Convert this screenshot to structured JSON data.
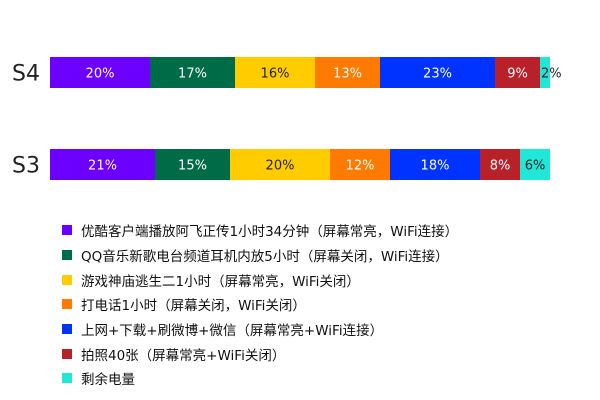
{
  "chart_data": {
    "type": "bar",
    "orientation": "horizontal",
    "stacked": true,
    "categories": [
      "S4",
      "S3"
    ],
    "series": [
      {
        "name": "优酷客户端播放阿飞正传1小时34分钟（屏幕常亮，WiFi连接）",
        "color": "#6b00ff",
        "values": [
          20,
          21
        ],
        "labels": [
          "20%",
          "21%"
        ]
      },
      {
        "name": "QQ音乐新歌电台频道耳机内放5小时（屏幕关闭，WiFi连接）",
        "color": "#006c47",
        "values": [
          17,
          15
        ],
        "labels": [
          "17%",
          "15%"
        ]
      },
      {
        "name": "游戏神庙逃生二1小时（屏幕常亮，WiFi关闭）",
        "color": "#ffcc00",
        "values": [
          16,
          20
        ],
        "labels": [
          "16%",
          "20%"
        ]
      },
      {
        "name": "打电话1小时（屏幕关闭，WiFi关闭）",
        "color": "#ff7a00",
        "values": [
          13,
          12
        ],
        "labels": [
          "13%",
          "12%"
        ]
      },
      {
        "name": "上网+下载+刷微博+微信（屏幕常亮+WiFi连接）",
        "color": "#0033ff",
        "values": [
          23,
          18
        ],
        "labels": [
          "23%",
          "18%"
        ]
      },
      {
        "name": "拍照40张（屏幕常亮+WiFi关闭）",
        "color": "#b8202a",
        "values": [
          9,
          8
        ],
        "labels": [
          "9%",
          "8%"
        ]
      },
      {
        "name": "剩余电量",
        "color": "#1fe8d8",
        "values": [
          2,
          6
        ],
        "labels": [
          "2%",
          "6%"
        ]
      }
    ],
    "xlim": [
      0,
      100
    ],
    "grid": false,
    "legend_position": "bottom"
  }
}
